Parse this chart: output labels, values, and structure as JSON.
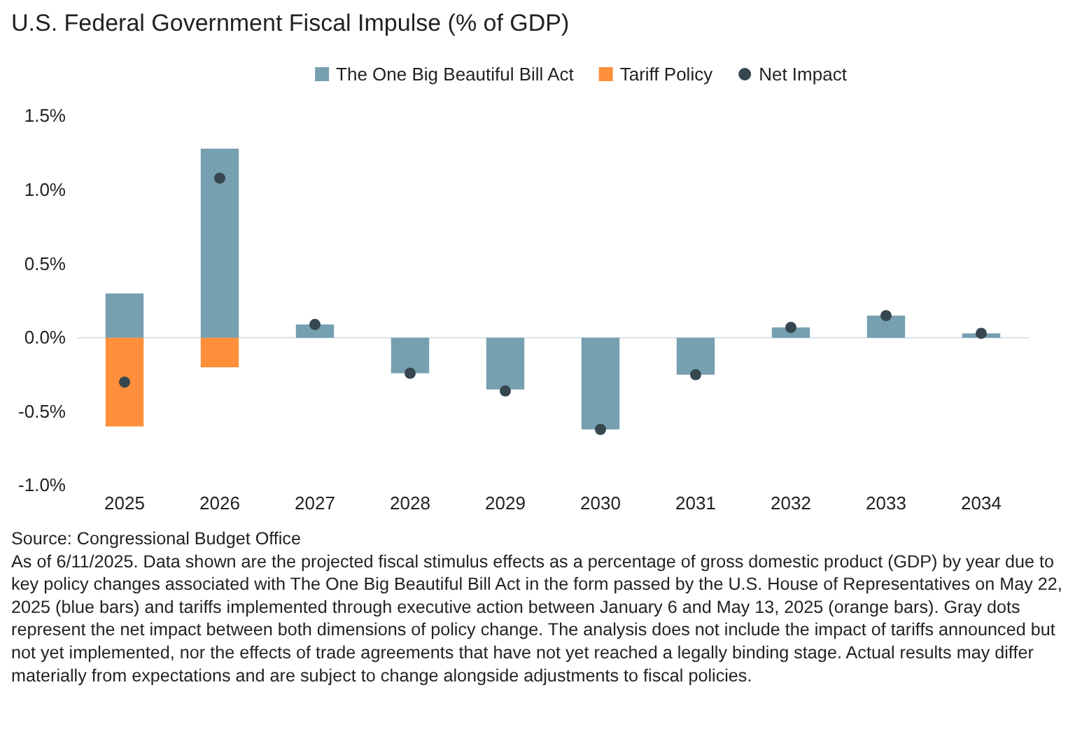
{
  "chart_data": {
    "type": "bar",
    "title": "U.S. Federal Government Fiscal Impulse (% of GDP)",
    "categories": [
      "2025",
      "2026",
      "2027",
      "2028",
      "2029",
      "2030",
      "2031",
      "2032",
      "2033",
      "2034"
    ],
    "series": [
      {
        "name": "The One Big Beautiful Bill Act",
        "color": "#769fb0",
        "values": [
          0.3,
          1.28,
          0.09,
          -0.24,
          -0.35,
          -0.62,
          -0.25,
          0.07,
          0.15,
          0.03
        ]
      },
      {
        "name": "Tariff Policy",
        "color": "#ff8f3a",
        "values": [
          -0.6,
          -0.2,
          null,
          null,
          null,
          null,
          null,
          null,
          null,
          null
        ]
      },
      {
        "name": "Net Impact",
        "type": "scatter",
        "color": "#37474f",
        "values": [
          -0.3,
          1.08,
          0.09,
          -0.24,
          -0.36,
          -0.62,
          -0.25,
          0.07,
          0.15,
          0.03
        ]
      }
    ],
    "stacked": true,
    "ylim": [
      -1,
      1.5
    ],
    "yticks": [
      {
        "value": -1,
        "label": "-1.0%"
      },
      {
        "value": -0.5,
        "label": "-0.5%"
      },
      {
        "value": 0,
        "label": "0.0%"
      },
      {
        "value": 0.5,
        "label": "0.5%"
      },
      {
        "value": 1,
        "label": "1.0%"
      },
      {
        "value": 1.5,
        "label": "1.5%"
      }
    ],
    "ref_lines": [
      {
        "axis": "y",
        "value": 0,
        "color": "#d8e2ea"
      }
    ],
    "grid": false,
    "legend": "top",
    "marker": "circle",
    "annotations": [
      "Source: Congressional Budget Office",
      "As of 6/11/2025. Data shown are the projected fiscal stimulus effects as a percentage of gross domestic product (GDP) by year due to key policy changes associated with The One Big Beautiful Bill Act in the form passed by the U.S. House of Representatives on May 22, 2025 (blue bars) and tariffs implemented through executive action between January 6 and May 13, 2025 (orange bars). Gray dots represent the net impact between both dimensions of policy change. The analysis does not include the impact of tariffs announced but not yet implemented, nor the effects of trade agreements that have not yet reached a legally binding stage. Actual results may differ materially from expectations and are subject to change alongside adjustments to fiscal policies."
    ]
  }
}
